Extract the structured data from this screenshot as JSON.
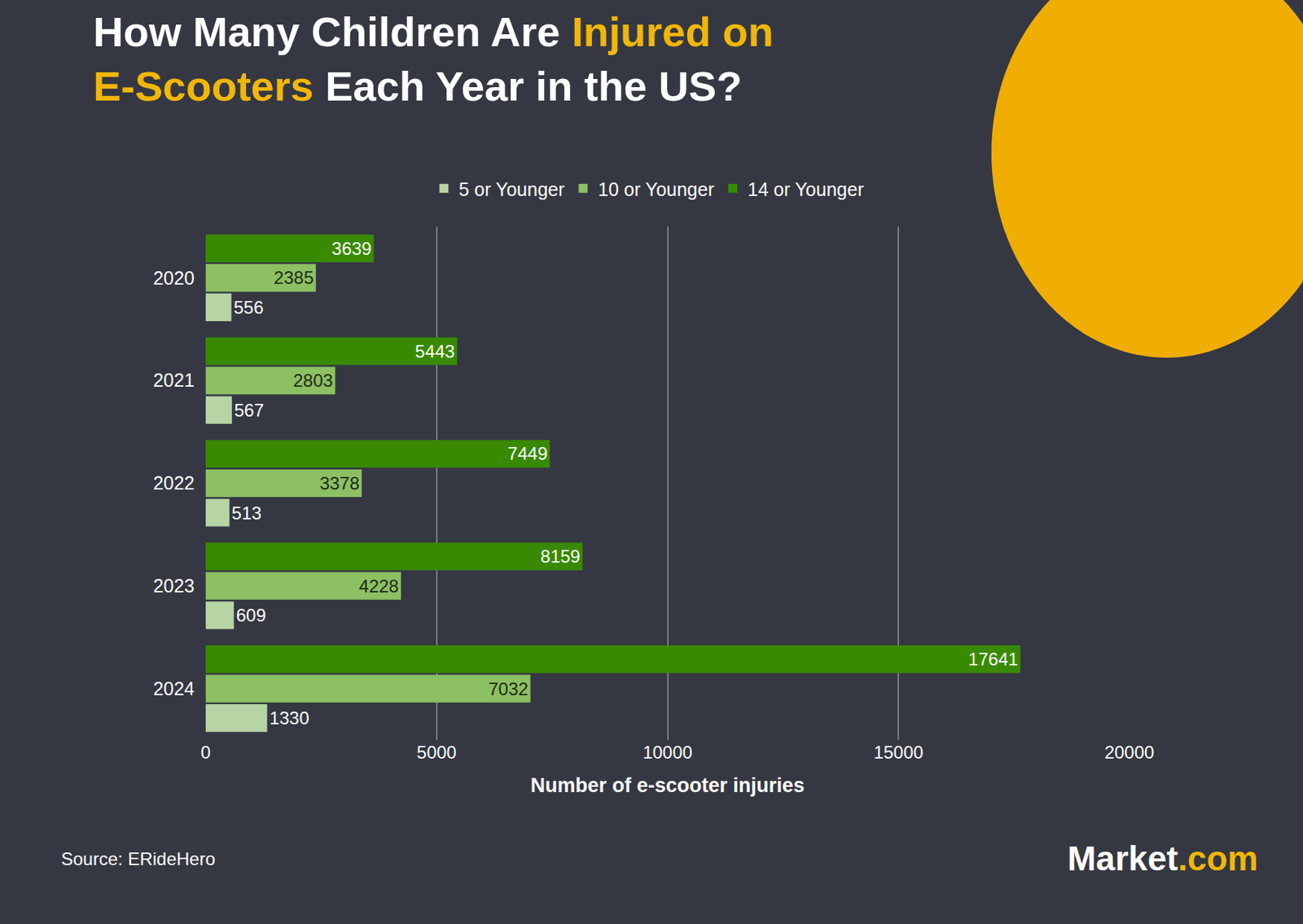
{
  "chart_data": {
    "type": "bar",
    "orientation": "horizontal",
    "title": "How Many Children Are Injured on E-Scooters Each Year in the US?",
    "x_label": "Number of e-scooter injuries",
    "categories": [
      "2020",
      "2021",
      "2022",
      "2023",
      "2024"
    ],
    "series": [
      {
        "name": "5 or Younger",
        "color": "#b7d4a5",
        "values": [
          556,
          567,
          513,
          609,
          1330
        ]
      },
      {
        "name": "10 or Younger",
        "color": "#8cc063",
        "values": [
          2385,
          2803,
          3378,
          4228,
          7032
        ]
      },
      {
        "name": "14 or Younger",
        "color": "#398a00",
        "values": [
          3639,
          5443,
          7449,
          8159,
          17641
        ]
      }
    ],
    "xlim": [
      0,
      20000
    ],
    "xticks": [
      0,
      5000,
      10000,
      15000,
      20000
    ],
    "grid": true,
    "legend": "top",
    "data_labels": true,
    "annotations": [
      "Source: ERideHero",
      "Market.com"
    ]
  }
}
